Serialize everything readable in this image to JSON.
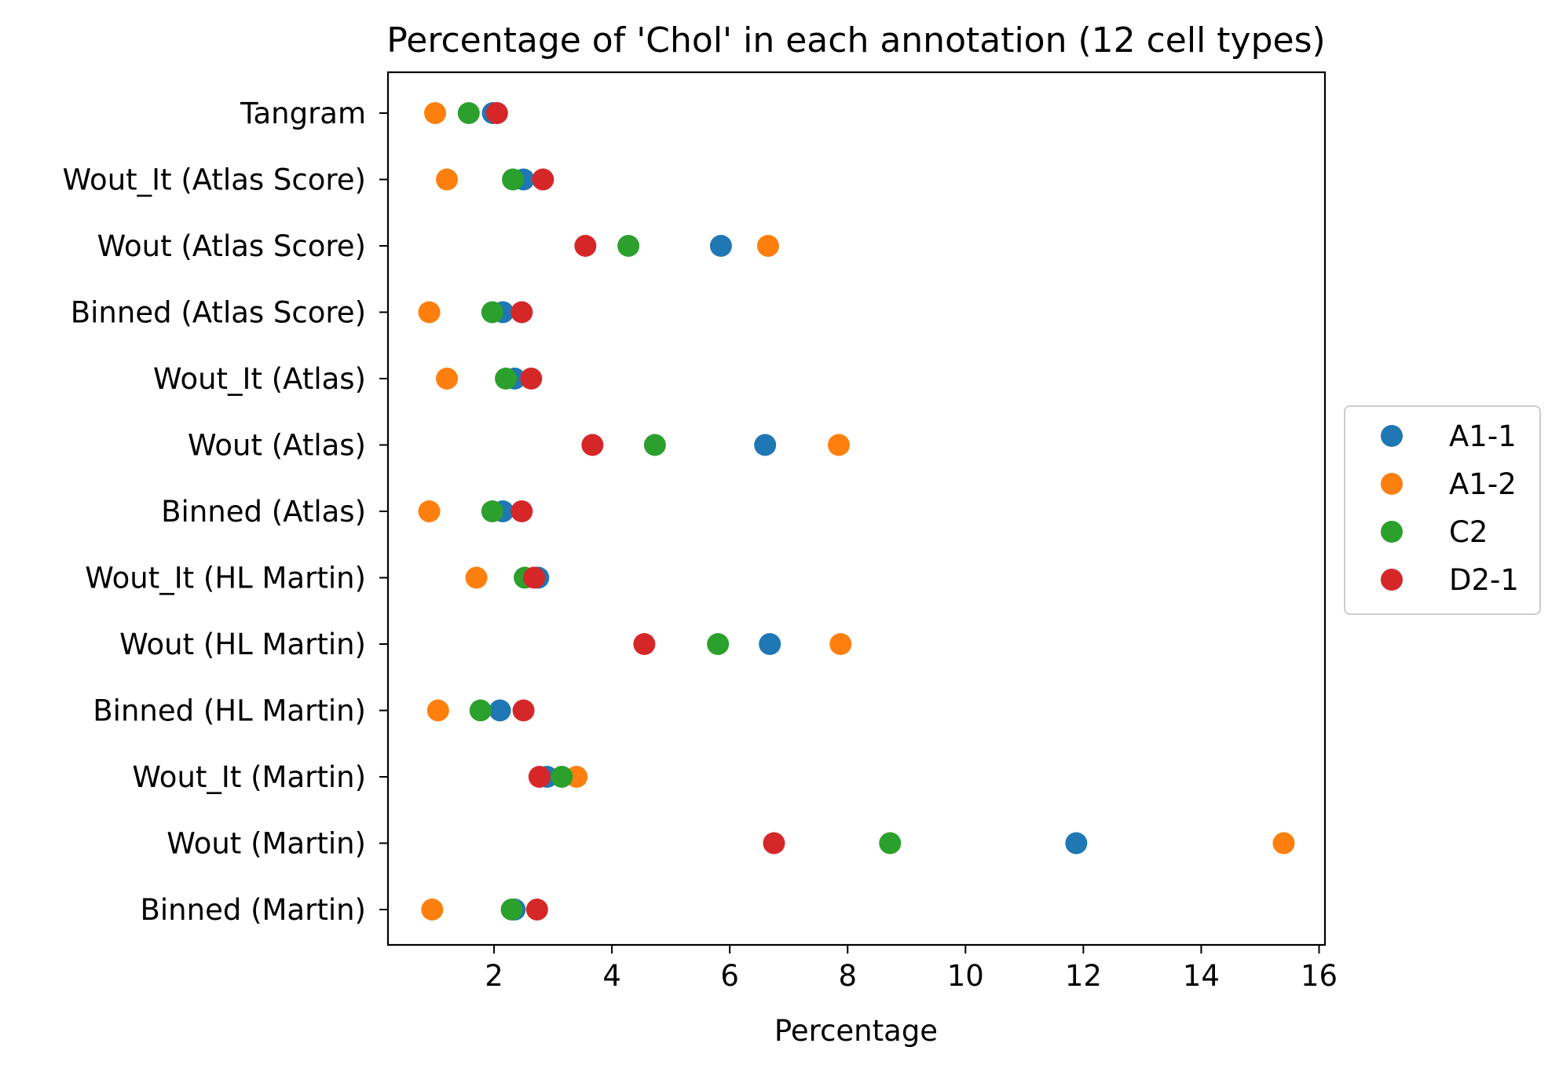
{
  "chart_data": {
    "type": "scatter",
    "title": "Percentage of 'Chol' in each annotation (12 cell types)",
    "xlabel": "Percentage",
    "ylabel": "",
    "xlim": [
      0.2,
      16.1
    ],
    "xticks": [
      2,
      4,
      6,
      8,
      10,
      12,
      14,
      16
    ],
    "categories": [
      "Tangram",
      "Wout_It (Atlas Score)",
      "Wout (Atlas Score)",
      "Binned (Atlas Score)",
      "Wout_It (Atlas)",
      "Wout (Atlas)",
      "Binned (Atlas)",
      "Wout_It (HL Martin)",
      "Wout (HL Martin)",
      "Binned (HL Martin)",
      "Wout_It (Martin)",
      "Wout (Martin)",
      "Binned (Martin)"
    ],
    "series": [
      {
        "name": "A1-1",
        "color": "#1f77b4",
        "values": [
          1.98,
          2.5,
          5.85,
          2.15,
          2.35,
          6.6,
          2.15,
          2.75,
          6.68,
          2.1,
          2.9,
          11.88,
          2.35
        ]
      },
      {
        "name": "A1-2",
        "color": "#ff7f0e",
        "values": [
          1.0,
          1.2,
          6.65,
          0.9,
          1.2,
          7.85,
          0.9,
          1.7,
          7.88,
          1.05,
          3.4,
          15.4,
          0.95
        ]
      },
      {
        "name": "C2",
        "color": "#2ca02c",
        "values": [
          1.57,
          2.32,
          4.28,
          1.97,
          2.2,
          4.73,
          1.97,
          2.52,
          5.8,
          1.77,
          3.15,
          8.72,
          2.3
        ]
      },
      {
        "name": "D2-1",
        "color": "#d62728",
        "values": [
          2.05,
          2.83,
          3.55,
          2.47,
          2.63,
          3.67,
          2.47,
          2.68,
          4.55,
          2.5,
          2.77,
          6.75,
          2.73
        ]
      }
    ],
    "legend_position": "center-right",
    "grid": false
  }
}
